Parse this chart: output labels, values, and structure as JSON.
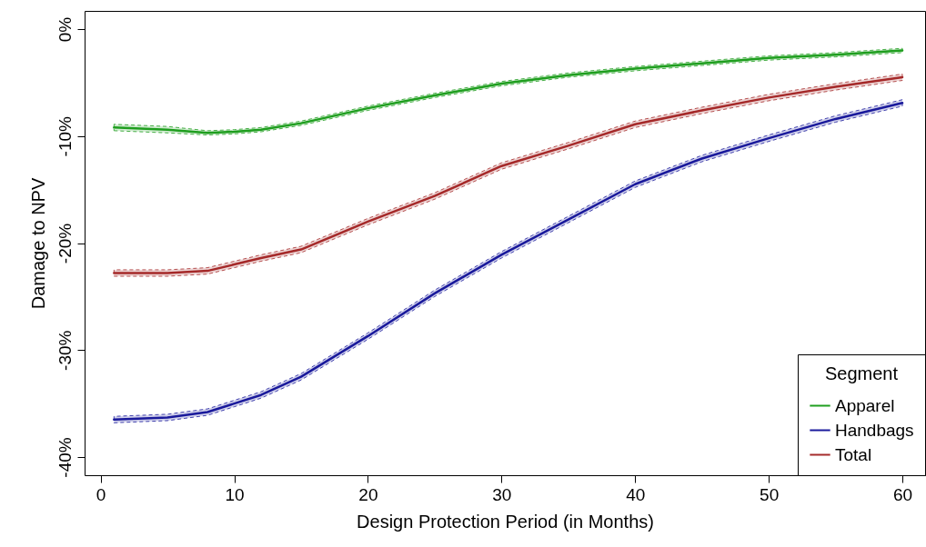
{
  "chart_data": {
    "type": "line",
    "xlabel": "Design Protection Period (in Months)",
    "ylabel": "Damage to NPV",
    "legend_title": "Segment",
    "x": [
      1,
      5,
      8,
      10,
      12,
      15,
      20,
      25,
      30,
      35,
      40,
      45,
      50,
      55,
      60
    ],
    "series": [
      {
        "name": "Apparel",
        "color": "#1f9e1f",
        "values": [
          -9.2,
          -9.4,
          -9.7,
          -9.6,
          -9.4,
          -8.8,
          -7.4,
          -6.2,
          -5.1,
          -4.3,
          -3.7,
          -3.2,
          -2.7,
          -2.4,
          -2.0
        ],
        "lower": [
          -9.5,
          -9.7,
          -9.9,
          -9.8,
          -9.6,
          -9.0,
          -7.6,
          -6.4,
          -5.3,
          -4.5,
          -3.9,
          -3.4,
          -2.9,
          -2.6,
          -2.2
        ],
        "upper": [
          -8.9,
          -9.1,
          -9.5,
          -9.4,
          -9.2,
          -8.6,
          -7.2,
          -6.0,
          -4.9,
          -4.1,
          -3.5,
          -3.0,
          -2.5,
          -2.2,
          -1.8
        ]
      },
      {
        "name": "Handbags",
        "color": "#1a1a9c",
        "values": [
          -36.5,
          -36.3,
          -35.8,
          -35.0,
          -34.2,
          -32.5,
          -28.7,
          -24.7,
          -21.1,
          -17.8,
          -14.5,
          -12.1,
          -10.2,
          -8.4,
          -6.9
        ],
        "lower": [
          -36.8,
          -36.6,
          -36.1,
          -35.3,
          -34.5,
          -32.8,
          -29.0,
          -25.0,
          -21.4,
          -18.1,
          -14.8,
          -12.4,
          -10.5,
          -8.7,
          -7.2
        ],
        "upper": [
          -36.2,
          -36.0,
          -35.5,
          -34.7,
          -33.9,
          -32.2,
          -28.4,
          -24.4,
          -20.8,
          -17.5,
          -14.2,
          -11.8,
          -9.9,
          -8.1,
          -6.6
        ]
      },
      {
        "name": "Total",
        "color": "#a52a2a",
        "values": [
          -22.8,
          -22.8,
          -22.6,
          -22.0,
          -21.4,
          -20.6,
          -18.0,
          -15.6,
          -12.8,
          -10.9,
          -8.9,
          -7.6,
          -6.4,
          -5.4,
          -4.5
        ],
        "lower": [
          -23.1,
          -23.1,
          -22.9,
          -22.3,
          -21.7,
          -20.9,
          -18.3,
          -15.9,
          -13.1,
          -11.2,
          -9.2,
          -7.9,
          -6.7,
          -5.7,
          -4.8
        ],
        "upper": [
          -22.5,
          -22.5,
          -22.3,
          -21.7,
          -21.1,
          -20.3,
          -17.7,
          -15.3,
          -12.5,
          -10.6,
          -8.6,
          -7.3,
          -6.1,
          -5.1,
          -4.2
        ]
      }
    ],
    "xlim": [
      -1.2,
      61.7
    ],
    "xticks": [
      0,
      10,
      20,
      30,
      40,
      50,
      60
    ],
    "ylim": [
      -41.7,
      1.7
    ],
    "yticks": [
      {
        "value": 0,
        "label": "0%"
      },
      {
        "value": -10,
        "label": "-10%"
      },
      {
        "value": -20,
        "label": "-20%"
      },
      {
        "value": -30,
        "label": "-30%"
      },
      {
        "value": -40,
        "label": "-40%"
      }
    ],
    "grid": false,
    "legend": "bottom right",
    "line_style": "solid",
    "marker": "none"
  }
}
